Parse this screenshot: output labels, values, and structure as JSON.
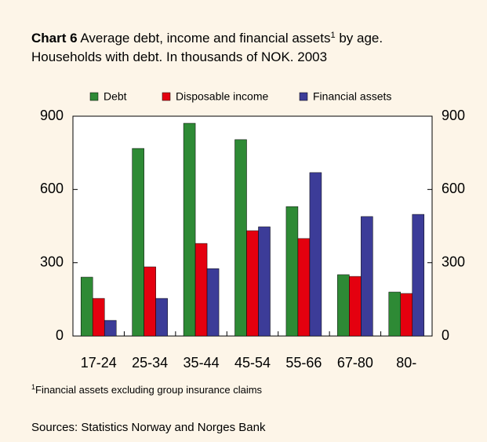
{
  "chart_data": {
    "type": "bar",
    "title_label": "Chart 6",
    "title": "Average debt, income and financial assets",
    "title_mark": "1",
    "title_end": " by age.",
    "subtitle": "Households with debt. In thousands of NOK. 2003",
    "categories": [
      "17-24",
      "25-34",
      "35-44",
      "45-54",
      "55-66",
      "67-80",
      "80-"
    ],
    "series": [
      {
        "name": "Debt",
        "color": "#2e8a35",
        "values": [
          241,
          768,
          871,
          804,
          530,
          251,
          180
        ]
      },
      {
        "name": "Disposable income",
        "color": "#e4000f",
        "values": [
          154,
          283,
          379,
          431,
          399,
          244,
          174
        ]
      },
      {
        "name": "Financial assets",
        "color": "#3c3c98",
        "values": [
          64,
          154,
          276,
          447,
          669,
          489,
          498
        ]
      }
    ],
    "ylim": [
      0,
      900
    ],
    "yticks": [
      0,
      300,
      600,
      900
    ],
    "y2lim": [
      0,
      900
    ],
    "y2ticks": [
      0,
      300,
      600,
      900
    ],
    "footnote_mark": "1",
    "footnote": "Financial assets excluding group insurance claims",
    "source": "Sources: Statistics Norway and Norges Bank"
  }
}
